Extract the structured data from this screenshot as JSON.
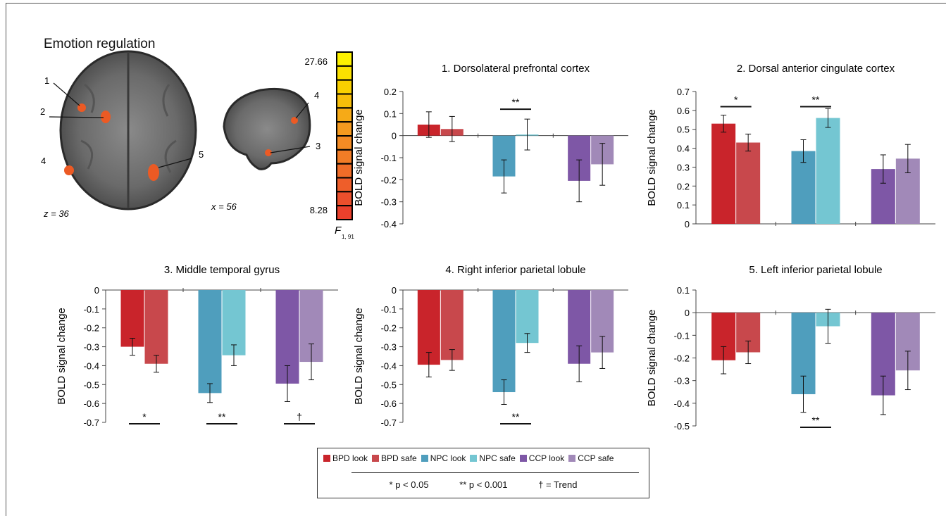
{
  "figure": {
    "section_title": "Emotion regulation",
    "axial_slice_label": "z = 36",
    "sagittal_slice_label": "x = 56",
    "colorbar_max": "27.66",
    "colorbar_min": "8.28",
    "colorbar_stat": "F",
    "colorbar_stat_sub": "1, 91",
    "colorbar_colors": [
      "#fdf100",
      "#fbe100",
      "#f9d000",
      "#f7be0a",
      "#f6aa17",
      "#f59a1f",
      "#f48b24",
      "#f27c26",
      "#f06d28",
      "#ee5e2a",
      "#ec4f2c",
      "#ea402c"
    ],
    "region_markers": [
      "1",
      "2",
      "3",
      "4",
      "5"
    ]
  },
  "legend": {
    "items": [
      {
        "label": "BPD look",
        "color": "#c9242b"
      },
      {
        "label": "BPD safe",
        "color": "#c8484c"
      },
      {
        "label": "NPC look",
        "color": "#4f9ebd"
      },
      {
        "label": "NPC safe",
        "color": "#74c6d2"
      },
      {
        "label": "CCP look",
        "color": "#7e57a6"
      },
      {
        "label": "CCP safe",
        "color": "#a189b8"
      }
    ],
    "sig1": "* p < 0.05",
    "sig2": "** p < 0.001",
    "trend": "† = Trend"
  },
  "chart_data": [
    {
      "type": "bar",
      "title": "1. Dorsolateral prefrontal cortex",
      "ylabel": "BOLD signal change",
      "ylim": [
        -0.4,
        0.2
      ],
      "yticks": [
        "0.2",
        "0.1",
        "0",
        "-0.1",
        "-0.2",
        "-0.3",
        "-0.4"
      ],
      "groups": [
        "BPD",
        "NPC",
        "CCP"
      ],
      "series": [
        {
          "name": "BPD look",
          "values": [
            0.05
          ]
        },
        {
          "name": "BPD safe",
          "values": [
            0.03
          ]
        },
        {
          "name": "NPC look",
          "values": [
            -0.185
          ]
        },
        {
          "name": "NPC safe",
          "values": [
            0.005
          ]
        },
        {
          "name": "CCP look",
          "values": [
            -0.205
          ]
        },
        {
          "name": "CCP safe",
          "values": [
            -0.13
          ]
        }
      ],
      "bars": [
        0.05,
        0.03,
        -0.185,
        0.005,
        -0.205,
        -0.13
      ],
      "errors": [
        0.058,
        0.057,
        0.075,
        0.07,
        0.095,
        0.095
      ],
      "significance": [
        {
          "group": 1,
          "mark": "**",
          "position": "above"
        }
      ]
    },
    {
      "type": "bar",
      "title": "2. Dorsal anterior cingulate cortex",
      "ylabel": "BOLD signal change",
      "ylim": [
        0,
        0.7
      ],
      "yticks": [
        "0.7",
        "0.6",
        "0.5",
        "0.4",
        "0.3",
        "0.2",
        "0.1",
        "0"
      ],
      "groups": [
        "BPD",
        "NPC",
        "CCP"
      ],
      "bars": [
        0.53,
        0.43,
        0.385,
        0.56,
        0.29,
        0.345
      ],
      "errors": [
        0.045,
        0.045,
        0.06,
        0.05,
        0.075,
        0.075
      ],
      "significance": [
        {
          "group": 0,
          "mark": "*",
          "position": "above"
        },
        {
          "group": 1,
          "mark": "**",
          "position": "above"
        }
      ]
    },
    {
      "type": "bar",
      "title": "3. Middle temporal gyrus",
      "ylabel": "BOLD signal change",
      "ylim": [
        -0.7,
        0
      ],
      "yticks": [
        "0",
        "-0.1",
        "-0.2",
        "-0.3",
        "-0.4",
        "-0.5",
        "-0.6",
        "-0.7"
      ],
      "groups": [
        "BPD",
        "NPC",
        "CCP"
      ],
      "bars": [
        -0.3,
        -0.39,
        -0.545,
        -0.345,
        -0.495,
        -0.38
      ],
      "errors": [
        0.045,
        0.045,
        0.05,
        0.055,
        0.095,
        0.095
      ],
      "significance": [
        {
          "group": 0,
          "mark": "*",
          "position": "below"
        },
        {
          "group": 1,
          "mark": "**",
          "position": "below"
        },
        {
          "group": 2,
          "mark": "†",
          "position": "below"
        }
      ]
    },
    {
      "type": "bar",
      "title": "4. Right inferior parietal lobule",
      "ylabel": "BOLD signal change",
      "ylim": [
        -0.7,
        0
      ],
      "yticks": [
        "0",
        "-0.1",
        "-0.2",
        "-0.3",
        "-0.4",
        "-0.5",
        "-0.6",
        "-0.7"
      ],
      "groups": [
        "BPD",
        "NPC",
        "CCP"
      ],
      "bars": [
        -0.395,
        -0.37,
        -0.54,
        -0.28,
        -0.39,
        -0.33
      ],
      "errors": [
        0.065,
        0.055,
        0.065,
        0.05,
        0.095,
        0.085
      ],
      "significance": [
        {
          "group": 1,
          "mark": "**",
          "position": "below"
        }
      ]
    },
    {
      "type": "bar",
      "title": "5. Left inferior parietal lobule",
      "ylabel": "BOLD signal change",
      "ylim": [
        -0.5,
        0.1
      ],
      "yticks": [
        "0.1",
        "0",
        "-0.1",
        "-0.2",
        "-0.3",
        "-0.4",
        "-0.5"
      ],
      "groups": [
        "BPD",
        "NPC",
        "CCP"
      ],
      "bars": [
        -0.21,
        -0.175,
        -0.36,
        -0.06,
        -0.365,
        -0.255
      ],
      "errors": [
        0.06,
        0.05,
        0.08,
        0.075,
        0.085,
        0.085
      ],
      "significance": [
        {
          "group": 1,
          "mark": "**",
          "position": "below"
        }
      ]
    }
  ]
}
